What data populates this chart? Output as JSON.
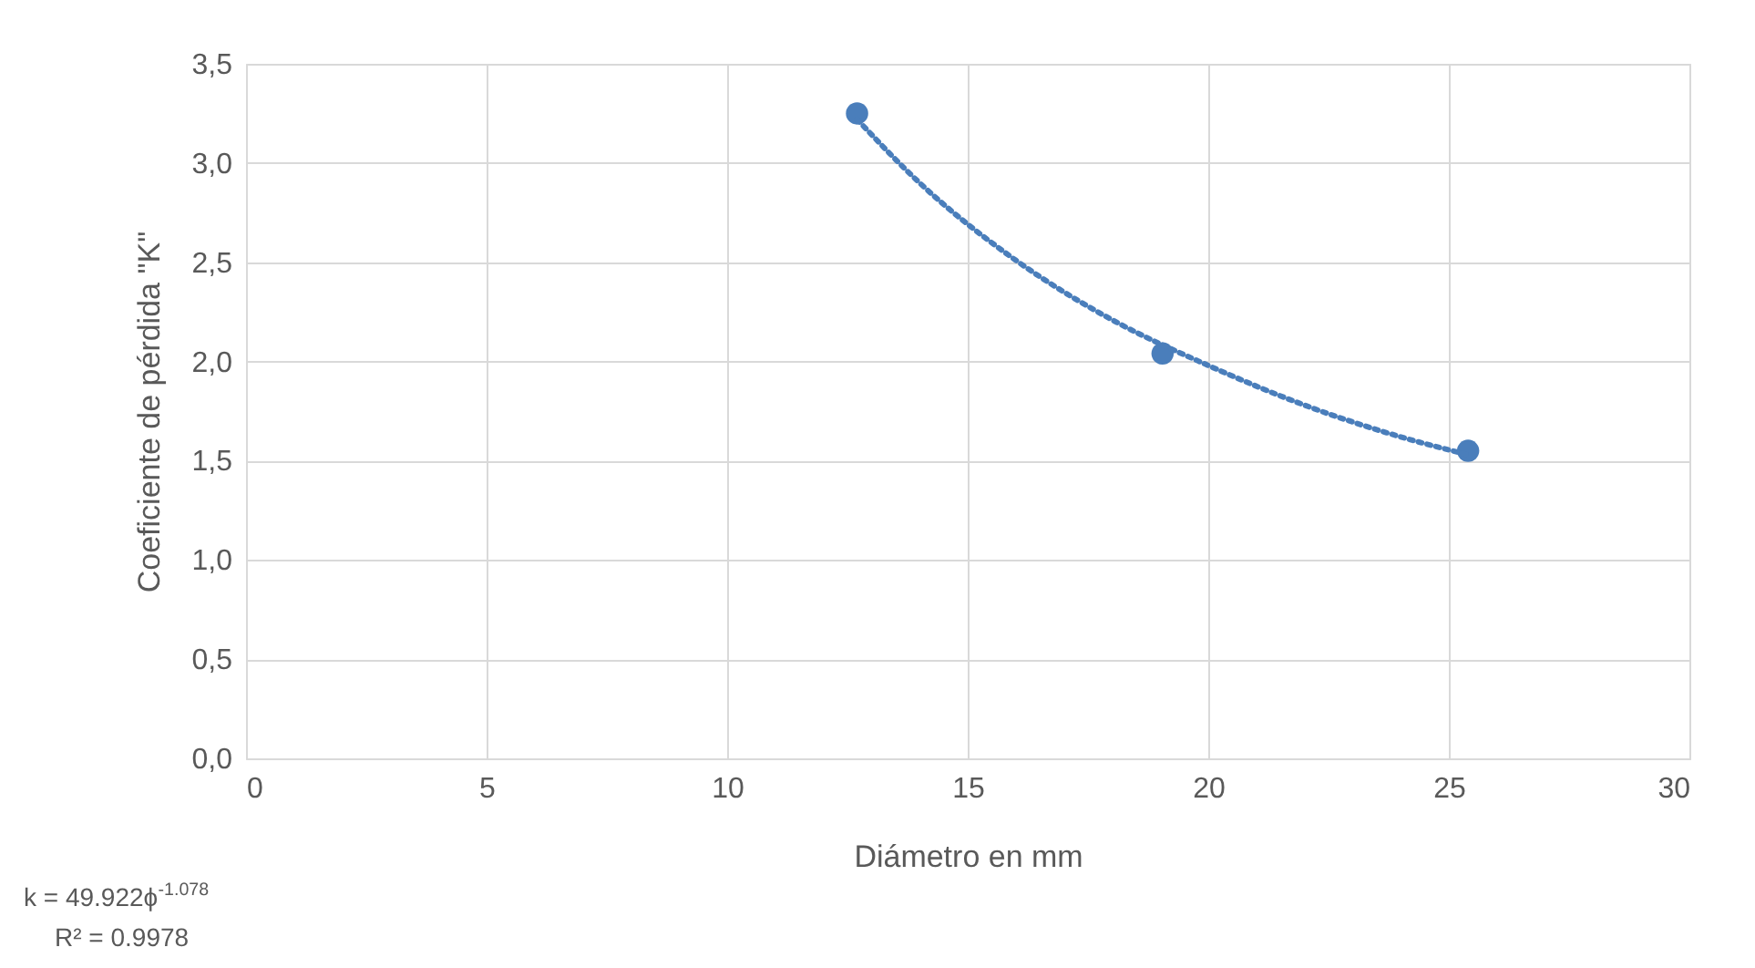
{
  "chart_data": {
    "type": "scatter",
    "xlabel": "Diámetro en mm",
    "ylabel": "Coeficiente de pérdida \"K\"",
    "series": [
      {
        "type": "scatter",
        "color": "#4a7ebb",
        "x": [
          12.7,
          19.05,
          25.4
        ],
        "values": [
          3.25,
          2.04,
          1.55
        ],
        "marker": "circle"
      },
      {
        "type": "line",
        "color": "#4a7ebb",
        "line_style": "dotted",
        "x": [
          12.7,
          14,
          16,
          18,
          20,
          22,
          24,
          25.4
        ],
        "values": [
          3.22,
          2.9,
          2.51,
          2.21,
          1.98,
          1.78,
          1.62,
          1.53
        ]
      }
    ],
    "xlim": [
      0,
      30
    ],
    "xticks": [
      0,
      5,
      10,
      15,
      20,
      25,
      30
    ],
    "ylim": [
      0,
      3.5
    ],
    "yticks": [
      {
        "value": 0,
        "label": "0,0"
      },
      {
        "value": 0.5,
        "label": "0,5"
      },
      {
        "value": 1,
        "label": "1,0"
      },
      {
        "value": 1.5,
        "label": "1,5"
      },
      {
        "value": 2,
        "label": "2,0"
      },
      {
        "value": 2.5,
        "label": "2,5"
      },
      {
        "value": 3,
        "label": "3,0"
      },
      {
        "value": 3.5,
        "label": "3,5"
      }
    ],
    "grid": true,
    "annotations": [
      "k = 49.922ϕ$^{-1.078}$",
      "R² = 0.9978"
    ]
  }
}
